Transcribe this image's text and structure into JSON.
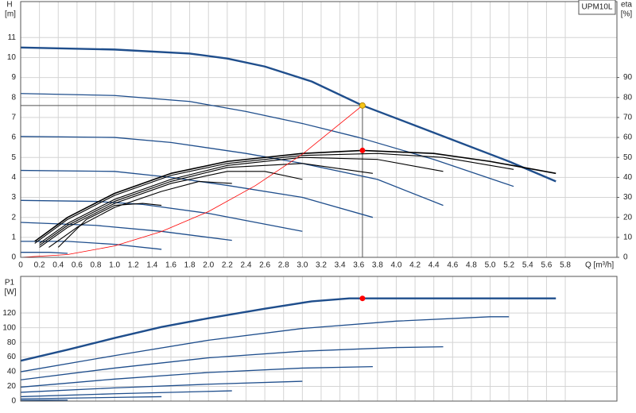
{
  "chart_data": [
    {
      "type": "line",
      "title": "UPM10L",
      "ylabel": "H",
      "yunit": "[m]",
      "y2label": "eta",
      "y2unit": "[%]",
      "xlabel": "Q [m³/h]",
      "xlim": [
        0,
        6.35
      ],
      "ylim": [
        0,
        12.8
      ],
      "y2lim": [
        0,
        128
      ],
      "grid": true,
      "xticks": [
        0,
        0.2,
        0.4,
        0.6,
        0.8,
        {
          "value": 1,
          "label": "1.0"
        },
        1.2,
        1.4,
        1.6,
        1.8,
        {
          "value": 2,
          "label": "2.0"
        },
        2.2,
        2.4,
        2.6,
        2.8,
        {
          "value": 3,
          "label": "3.0"
        },
        3.2,
        3.4,
        3.6,
        3.8,
        {
          "value": 4,
          "label": "4.0"
        },
        4.2,
        4.4,
        4.6,
        4.8,
        {
          "value": 5,
          "label": "5.0"
        },
        5.2,
        5.4,
        5.6,
        5.8
      ],
      "yticks": [
        0,
        1,
        2,
        3,
        4,
        5,
        6,
        7,
        8,
        9,
        10,
        11
      ],
      "y2ticks": [
        0,
        10,
        20,
        30,
        40,
        50,
        60,
        70,
        80,
        90
      ],
      "series": [
        {
          "color": "#1f4e8c",
          "width": 2.4,
          "x": [
            0,
            1,
            1.8,
            2.2,
            2.6,
            3.1,
            3.64,
            4.2,
            5.2,
            5.7
          ],
          "values": [
            10.5,
            10.4,
            10.2,
            9.95,
            9.55,
            8.8,
            7.6,
            6.6,
            4.8,
            3.8
          ]
        },
        {
          "color": "#1f4e8c",
          "width": 1.3,
          "x": [
            0,
            1,
            1.8,
            2.4,
            3.0,
            3.6,
            4.4,
            5.25
          ],
          "values": [
            8.2,
            8.1,
            7.8,
            7.3,
            6.7,
            6.0,
            4.9,
            3.55
          ]
        },
        {
          "color": "#1f4e8c",
          "width": 1.3,
          "x": [
            0,
            1,
            1.6,
            2.4,
            3.0,
            3.8,
            4.5
          ],
          "values": [
            6.05,
            6.0,
            5.75,
            5.2,
            4.7,
            3.9,
            2.6
          ]
        },
        {
          "color": "#1f4e8c",
          "width": 1.3,
          "x": [
            0,
            1,
            1.6,
            2.2,
            3.0,
            3.75
          ],
          "values": [
            4.35,
            4.3,
            4.0,
            3.6,
            3.0,
            2.0
          ]
        },
        {
          "color": "#1f4e8c",
          "width": 1.3,
          "x": [
            0,
            0.8,
            1.3,
            2.0,
            3.0
          ],
          "values": [
            2.85,
            2.8,
            2.65,
            2.2,
            1.3
          ]
        },
        {
          "color": "#1f4e8c",
          "width": 1.3,
          "x": [
            0,
            0.8,
            1.5,
            2.25
          ],
          "values": [
            1.75,
            1.6,
            1.3,
            0.85
          ]
        },
        {
          "color": "#1f4e8c",
          "width": 1.3,
          "x": [
            0,
            0.5,
            1.0,
            1.5
          ],
          "values": [
            0.8,
            0.8,
            0.65,
            0.4
          ]
        },
        {
          "color": "#1f4e8c",
          "width": 1.3,
          "x": [
            0,
            0.3,
            0.5
          ],
          "values": [
            0.25,
            0.25,
            0.2
          ]
        },
        {
          "color": "#000000",
          "width": 1.6,
          "axis": "y2",
          "x": [
            0.15,
            0.5,
            1,
            1.6,
            2.2,
            3.0,
            3.64,
            4.4,
            5.0,
            5.7
          ],
          "values": [
            8,
            20,
            32,
            42,
            48,
            52,
            53.5,
            52,
            48,
            42
          ]
        },
        {
          "color": "#000000",
          "width": 1.1,
          "axis": "y2",
          "x": [
            0.15,
            0.5,
            1,
            1.6,
            2.2,
            3.0,
            3.8,
            4.5,
            5.25
          ],
          "values": [
            7,
            19,
            31,
            41,
            47,
            51,
            52,
            50,
            44
          ]
        },
        {
          "color": "#000000",
          "width": 1.1,
          "axis": "y2",
          "x": [
            0.2,
            0.5,
            1,
            1.6,
            2.2,
            3.0,
            3.8,
            4.5
          ],
          "values": [
            7,
            17,
            29,
            39,
            46,
            50,
            49,
            43
          ]
        },
        {
          "color": "#000000",
          "width": 1.1,
          "axis": "y2",
          "x": [
            0.2,
            0.5,
            1,
            1.6,
            2.2,
            3.0,
            3.75
          ],
          "values": [
            6,
            16,
            28,
            38,
            45,
            47,
            42
          ]
        },
        {
          "color": "#000000",
          "width": 1.1,
          "axis": "y2",
          "x": [
            0.2,
            0.5,
            1,
            1.6,
            2.2,
            2.6,
            3.0
          ],
          "values": [
            5,
            15,
            27,
            37,
            43,
            43,
            39
          ]
        },
        {
          "color": "#000000",
          "width": 1.1,
          "axis": "y2",
          "x": [
            0.3,
            0.6,
            1,
            1.5,
            1.9,
            2.25
          ],
          "values": [
            5,
            15,
            25,
            33,
            38,
            37
          ]
        },
        {
          "color": "#000000",
          "width": 1.1,
          "axis": "y2",
          "x": [
            0.4,
            0.7,
            1,
            1.3,
            1.5
          ],
          "values": [
            5,
            19,
            26,
            27,
            26
          ]
        },
        {
          "color": "#ff0000",
          "width": 0.8,
          "x": [
            0,
            0.5,
            1,
            1.5,
            2,
            2.5,
            3,
            3.64
          ],
          "values": [
            0,
            0.14,
            0.57,
            1.29,
            2.29,
            3.59,
            5.16,
            7.6
          ]
        }
      ],
      "points": [
        {
          "x": 3.64,
          "value": 7.6,
          "color": "#f5c518",
          "guides": true
        },
        {
          "x": 3.64,
          "value": 53.5,
          "color": "#ff0000",
          "axis": "y2"
        }
      ]
    },
    {
      "type": "line",
      "ylabel": "P1",
      "yunit": "[W]",
      "xlim": [
        0,
        6.35
      ],
      "ylim": [
        0,
        170
      ],
      "grid": true,
      "yticks": [
        0,
        20,
        40,
        60,
        80,
        100,
        120
      ],
      "series": [
        {
          "color": "#1f4e8c",
          "width": 2.4,
          "x": [
            0,
            0.5,
            1,
            1.5,
            2,
            2.6,
            3.1,
            3.5,
            5.7
          ],
          "values": [
            55,
            70,
            86,
            101,
            113,
            126,
            136,
            140,
            140
          ]
        },
        {
          "color": "#1f4e8c",
          "width": 1.3,
          "x": [
            0,
            1,
            2,
            3,
            4,
            5,
            5.2
          ],
          "values": [
            40,
            62,
            83,
            99,
            109,
            115,
            115
          ]
        },
        {
          "color": "#1f4e8c",
          "width": 1.3,
          "x": [
            0,
            1,
            2,
            3,
            4,
            4.5
          ],
          "values": [
            29,
            45,
            59,
            68,
            73,
            74
          ]
        },
        {
          "color": "#1f4e8c",
          "width": 1.3,
          "x": [
            0,
            1,
            2,
            3,
            3.75
          ],
          "values": [
            19,
            30,
            39,
            45,
            47
          ]
        },
        {
          "color": "#1f4e8c",
          "width": 1.3,
          "x": [
            0,
            1,
            2,
            3
          ],
          "values": [
            12,
            18,
            23,
            27
          ]
        },
        {
          "color": "#1f4e8c",
          "width": 1.3,
          "x": [
            0,
            1,
            2.25
          ],
          "values": [
            6,
            10,
            14
          ]
        },
        {
          "color": "#1f4e8c",
          "width": 1.3,
          "x": [
            0,
            1,
            1.5
          ],
          "values": [
            3,
            5,
            6
          ]
        },
        {
          "color": "#1f4e8c",
          "width": 1.3,
          "x": [
            0,
            0.5
          ],
          "values": [
            1,
            1.5
          ]
        }
      ],
      "points": [
        {
          "x": 3.64,
          "value": 140,
          "color": "#ff0000"
        }
      ]
    }
  ]
}
